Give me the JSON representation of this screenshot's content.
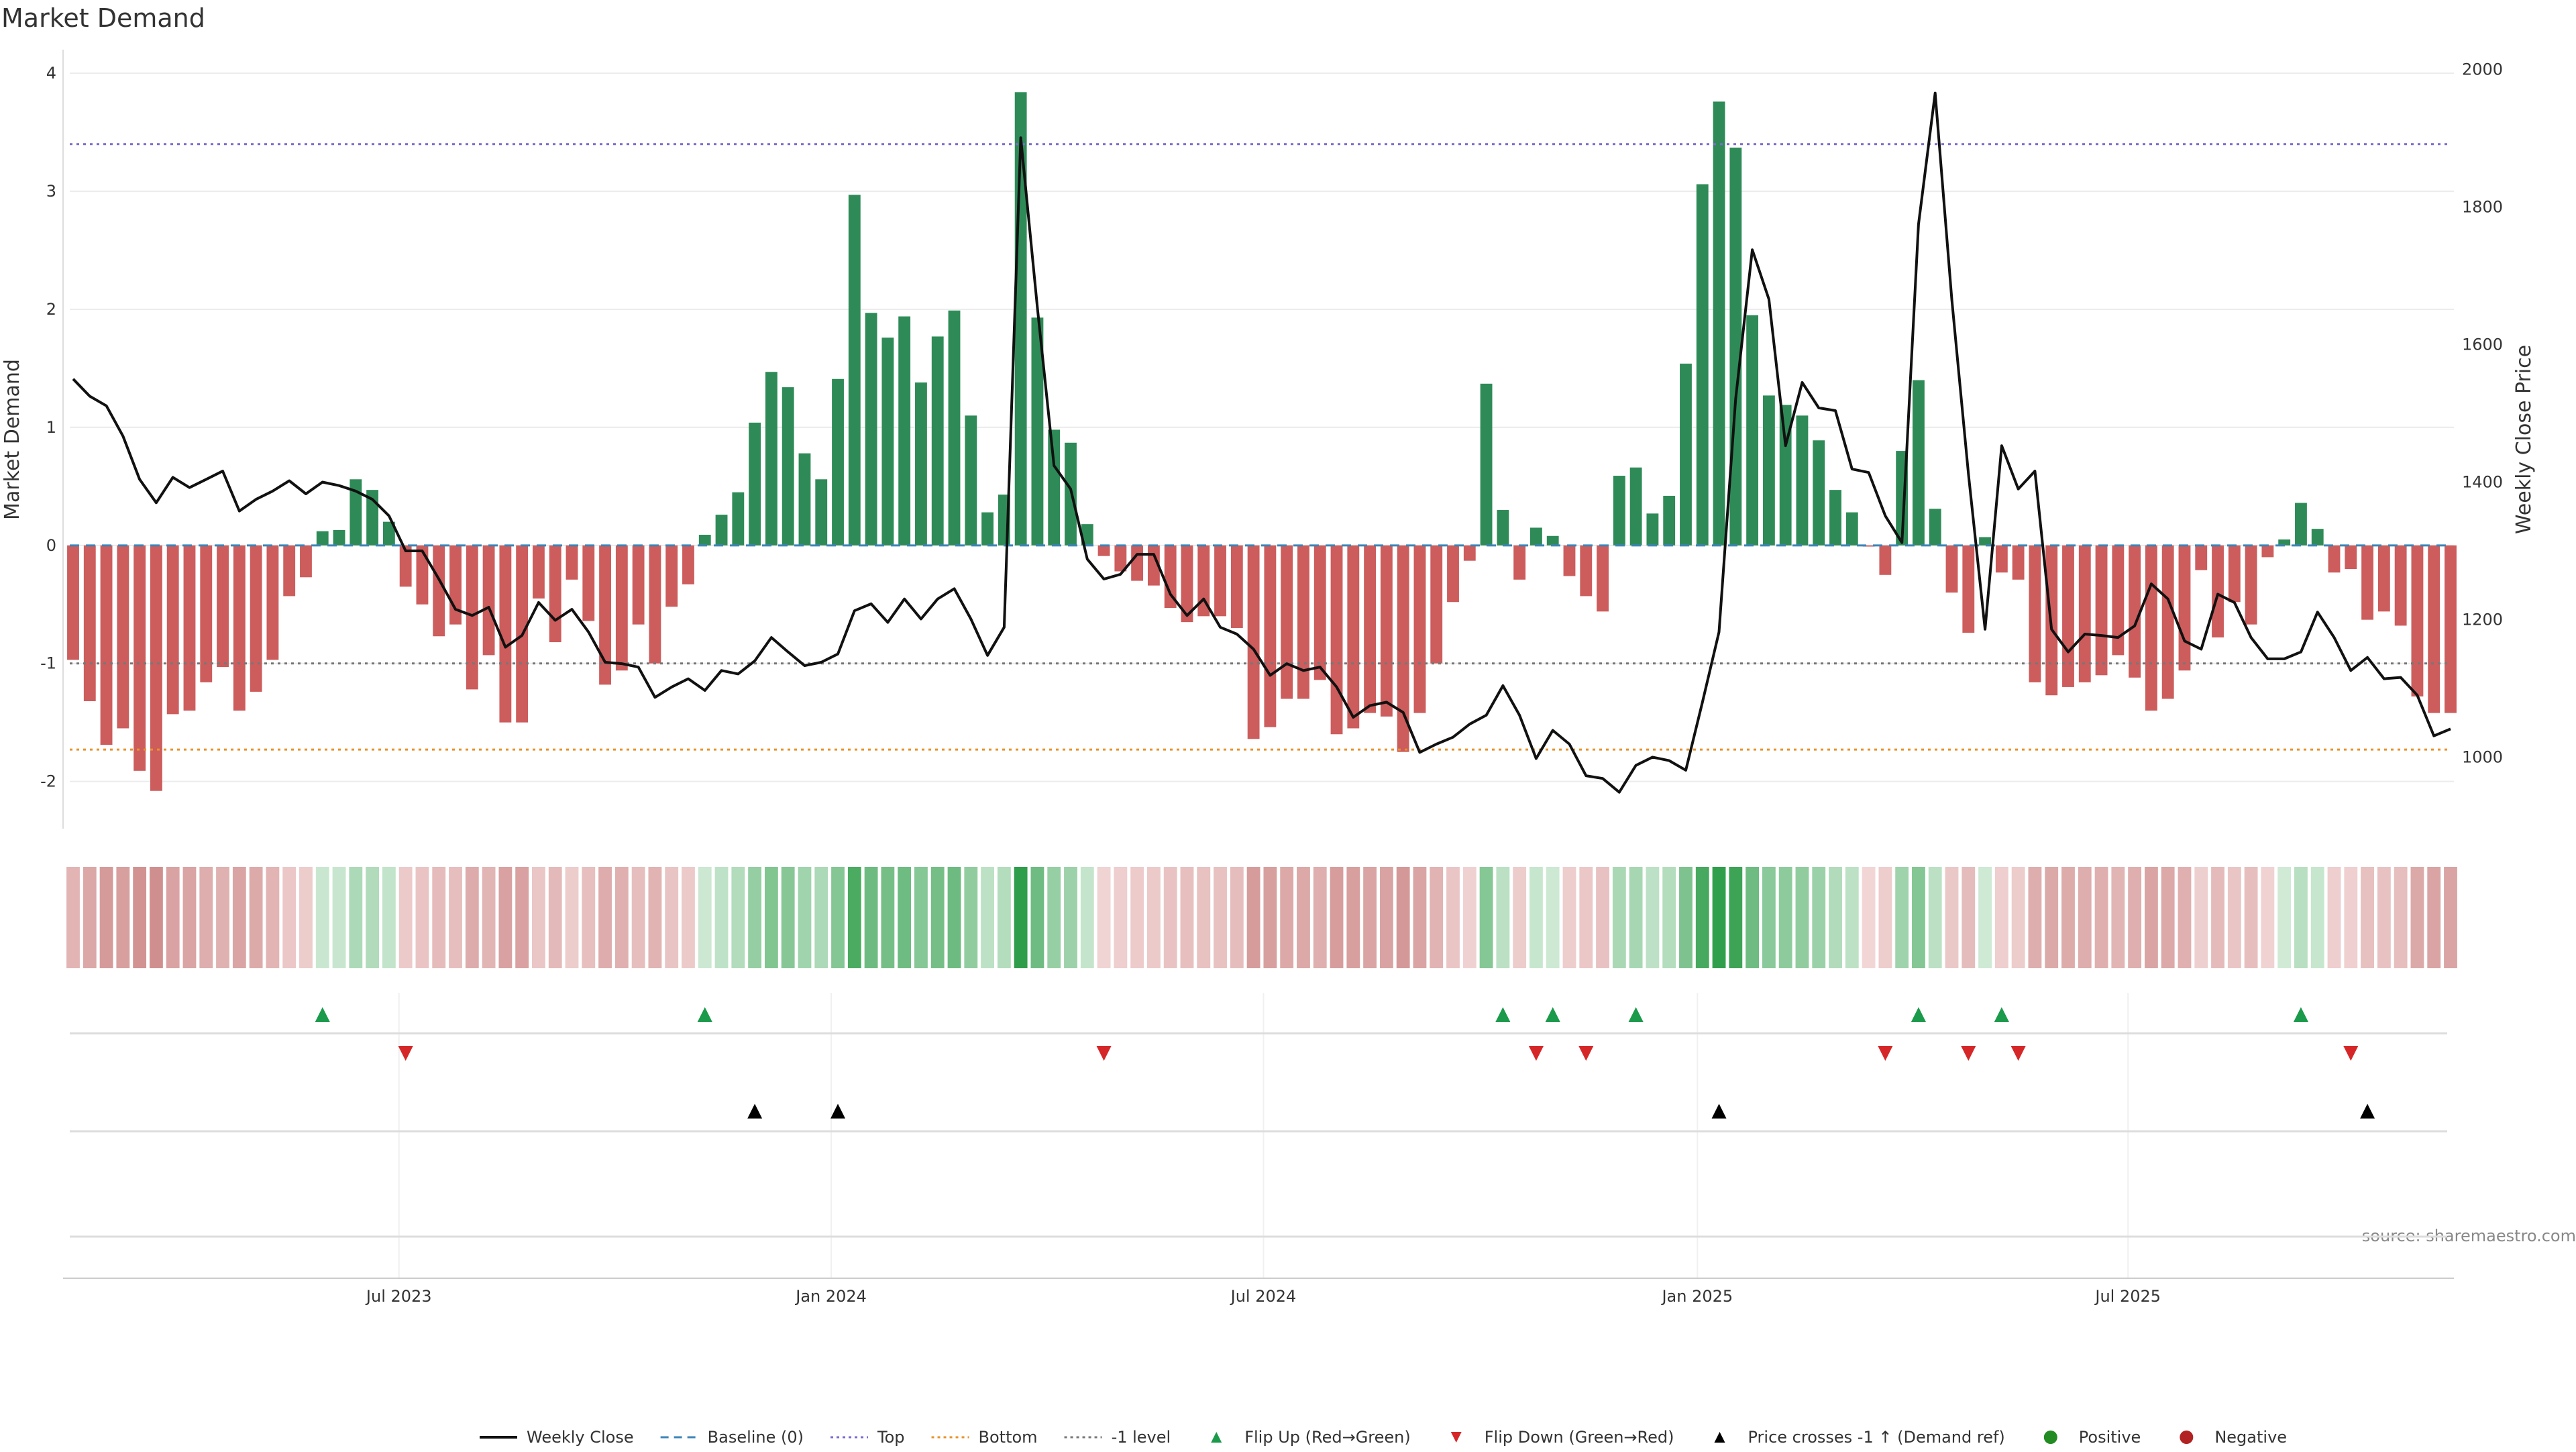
{
  "chart_data": {
    "type": "bar",
    "title": "Market Demand",
    "ylabel": "Market Demand",
    "y2label": "Weekly Close Price",
    "ylim": [
      -2.4,
      4.2
    ],
    "y2lim": [
      896,
      2029
    ],
    "yticks": [
      -2,
      -1,
      0,
      1,
      2,
      3,
      4
    ],
    "y2ticks": [
      1000,
      1200,
      1400,
      1600,
      1800,
      2000
    ],
    "grid": true,
    "xticks": [
      {
        "label": "Jul 2023",
        "week": 19.6
      },
      {
        "label": "Jan 2024",
        "week": 45.6
      },
      {
        "label": "Jul 2024",
        "week": 71.6
      },
      {
        "label": "Jan 2025",
        "week": 97.7
      },
      {
        "label": "Jul 2025",
        "week": 123.6
      }
    ],
    "levels": {
      "baseline": 0,
      "top": 3.4,
      "bottom": -1.73,
      "minus_one": -1
    },
    "demand": [
      -0.97,
      -1.32,
      -1.69,
      -1.55,
      -1.91,
      -2.08,
      -1.43,
      -1.4,
      -1.16,
      -1.03,
      -1.4,
      -1.24,
      -0.97,
      -0.43,
      -0.27,
      0.12,
      0.13,
      0.56,
      0.47,
      0.2,
      -0.35,
      -0.5,
      -0.77,
      -0.67,
      -1.22,
      -0.93,
      -1.5,
      -1.5,
      -0.45,
      -0.82,
      -0.29,
      -0.64,
      -1.18,
      -1.06,
      -0.67,
      -1.0,
      -0.52,
      -0.33,
      0.09,
      0.26,
      0.45,
      1.04,
      1.47,
      1.34,
      0.78,
      0.56,
      1.41,
      2.97,
      1.97,
      1.76,
      1.94,
      1.38,
      1.77,
      1.99,
      1.1,
      0.28,
      0.43,
      3.84,
      1.93,
      0.98,
      0.87,
      0.18,
      -0.09,
      -0.22,
      -0.3,
      -0.34,
      -0.53,
      -0.65,
      -0.6,
      -0.6,
      -0.7,
      -1.64,
      -1.54,
      -1.3,
      -1.3,
      -1.14,
      -1.6,
      -1.55,
      -1.42,
      -1.45,
      -1.75,
      -1.42,
      -1.0,
      -0.48,
      -0.13,
      1.37,
      0.3,
      -0.29,
      0.15,
      0.08,
      -0.26,
      -0.43,
      -0.56,
      0.59,
      0.66,
      0.27,
      0.42,
      1.54,
      3.06,
      3.76,
      3.37,
      1.95,
      1.27,
      1.19,
      1.1,
      0.89,
      0.47,
      0.28,
      -0.01,
      -0.25,
      0.8,
      1.4,
      0.31,
      -0.4,
      -0.74,
      0.07,
      -0.23,
      -0.29,
      -1.16,
      -1.27,
      -1.2,
      -1.16,
      -1.1,
      -0.93,
      -1.12,
      -1.4,
      -1.3,
      -1.06,
      -0.21,
      -0.78,
      -0.48,
      -0.67,
      -0.1,
      0.05,
      0.36,
      0.14,
      -0.23,
      -0.2,
      -0.63,
      -0.56,
      -0.68,
      -1.28,
      -1.42,
      -1.42
    ],
    "weekly_close": [
      1550,
      1525,
      1511,
      1467,
      1404,
      1370,
      1407,
      1392,
      1404,
      1416,
      1358,
      1375,
      1387,
      1402,
      1383,
      1400,
      1395,
      1387,
      1375,
      1351,
      1300,
      1300,
      1259,
      1215,
      1206,
      1218,
      1160,
      1177,
      1225,
      1199,
      1215,
      1182,
      1138,
      1136,
      1131,
      1087,
      1102,
      1114,
      1097,
      1126,
      1121,
      1140,
      1174,
      1153,
      1133,
      1138,
      1150,
      1213,
      1223,
      1196,
      1230,
      1201,
      1230,
      1245,
      1201,
      1148,
      1189,
      1901,
      1654,
      1424,
      1390,
      1288,
      1259,
      1266,
      1295,
      1295,
      1237,
      1206,
      1230,
      1189,
      1179,
      1157,
      1119,
      1136,
      1126,
      1131,
      1102,
      1058,
      1075,
      1080,
      1065,
      1007,
      1019,
      1029,
      1048,
      1061,
      1104,
      1061,
      998,
      1039,
      1019,
      973,
      969,
      949,
      988,
      1000,
      995,
      981,
      1080,
      1182,
      1521,
      1738,
      1666,
      1453,
      1545,
      1508,
      1504,
      1419,
      1414,
      1351,
      1312,
      1775,
      1966,
      1666,
      1412,
      1186,
      1453,
      1390,
      1416,
      1186,
      1153,
      1179,
      1177,
      1174,
      1191,
      1252,
      1230,
      1169,
      1157,
      1237,
      1225,
      1174,
      1143,
      1143,
      1153,
      1211,
      1174,
      1126,
      1145,
      1114,
      1116,
      1090,
      1031,
      1041
    ],
    "flip_up_weeks": [
      15,
      38,
      86,
      89,
      94,
      111,
      116,
      134
    ],
    "flip_down_weeks": [
      20,
      62,
      88,
      91,
      109,
      114,
      117,
      137
    ],
    "price_cross_weeks": [
      41,
      46,
      99,
      138
    ],
    "legend": {
      "placement": "bottom-center",
      "items": [
        {
          "label": "Weekly Close",
          "kind": "line",
          "color": "#111111"
        },
        {
          "label": "Baseline (0)",
          "kind": "dash",
          "color": "#3d85b8"
        },
        {
          "label": "Top",
          "kind": "dot",
          "color": "#7b6bd0"
        },
        {
          "label": "Bottom",
          "kind": "dot",
          "color": "#e8922a"
        },
        {
          "label": "-1 level",
          "kind": "dot",
          "color": "#777777"
        },
        {
          "label": "Flip Up (Red→Green)",
          "kind": "up",
          "color": "#1a9a4a"
        },
        {
          "label": "Flip Down (Green→Red)",
          "kind": "down",
          "color": "#d62728"
        },
        {
          "label": "Price crosses -1 ↑ (Demand ref)",
          "kind": "up",
          "color": "#000000"
        },
        {
          "label": "Positive",
          "kind": "dot-circle",
          "color": "#228b22"
        },
        {
          "label": "Negative",
          "kind": "dot-circle",
          "color": "#b22222"
        }
      ]
    },
    "source": "source: sharemaestro.com",
    "colors": {
      "positive": "#2e8b57",
      "negative": "#cd5c5c"
    }
  }
}
